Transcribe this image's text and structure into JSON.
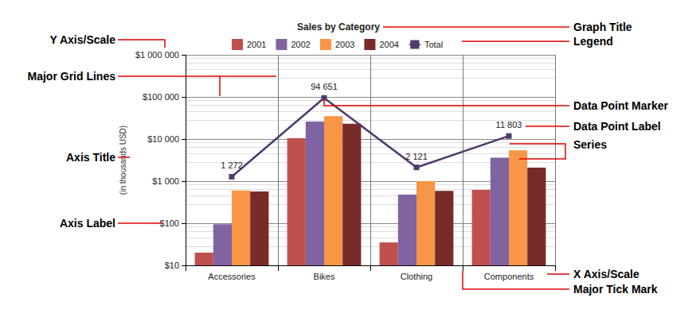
{
  "chart_data": {
    "type": "bar",
    "title": "Sales by Category",
    "y_label": "(in thousands USD)",
    "categories": [
      "Accessories",
      "Bikes",
      "Clothing",
      "Components"
    ],
    "series": [
      {
        "name": "2001",
        "color": "#c0504d",
        "values": [
          20,
          10500,
          35,
          620
        ]
      },
      {
        "name": "2002",
        "color": "#8064a2",
        "values": [
          95,
          26000,
          480,
          3600
        ]
      },
      {
        "name": "2003",
        "color": "#f79646",
        "values": [
          600,
          35000,
          1000,
          5400
        ]
      },
      {
        "name": "2004",
        "color": "#772c2a",
        "values": [
          570,
          23000,
          590,
          2100
        ]
      },
      {
        "name": "Total",
        "type": "line",
        "color": "#4f3b6c",
        "marker": "square",
        "data_labels": true,
        "values": [
          1272,
          94651,
          2121,
          11803
        ],
        "value_labels": [
          "1 272",
          "94 651",
          "2 121",
          "11 803"
        ]
      }
    ],
    "log": "y",
    "ylim": [
      10,
      1000000
    ],
    "yticks": [
      {
        "value": 10,
        "label": "$10"
      },
      {
        "value": 100,
        "label": "$100"
      },
      {
        "value": 1000,
        "label": "$1 000"
      },
      {
        "value": 10000,
        "label": "$10 000"
      },
      {
        "value": 100000,
        "label": "$100 000"
      },
      {
        "value": 1000000,
        "label": "$1 000 000"
      }
    ],
    "grid": true,
    "legend": "top",
    "annotations": [
      "Graph Title",
      "Legend",
      "Y Axis/Scale",
      "Major Grid Lines",
      "Axis Title",
      "Axis Label",
      "Data Point Marker",
      "Data Point Label",
      "Series",
      "X Axis/Scale",
      "Major Tick Mark"
    ]
  }
}
